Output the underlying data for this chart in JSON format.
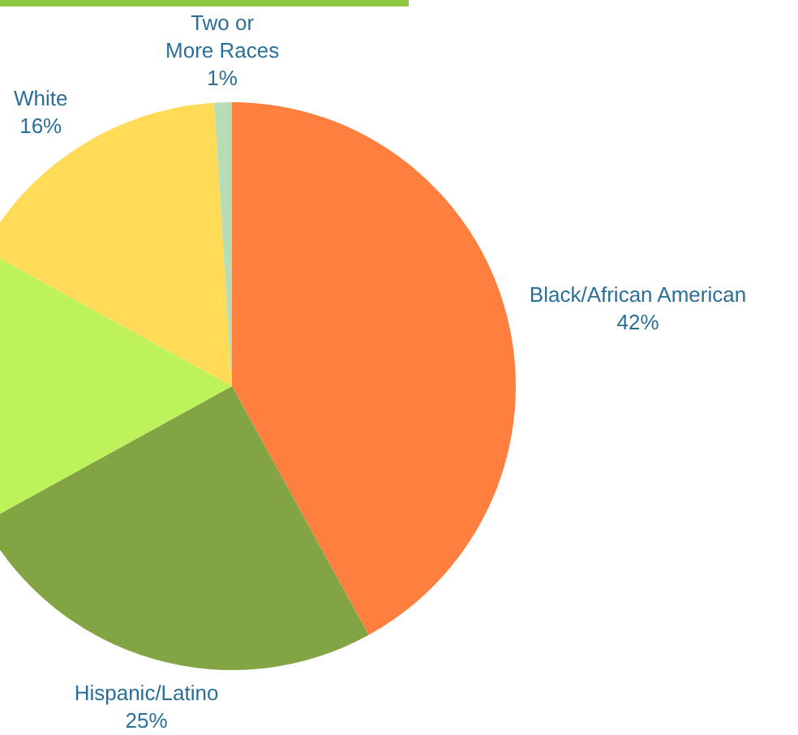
{
  "chart_data": {
    "type": "pie",
    "categories": [
      "Black/African American",
      "Hispanic/Latino",
      null,
      "White",
      "Two or More Races"
    ],
    "values": [
      42,
      25,
      16,
      16,
      1
    ],
    "value_labels": [
      "42%",
      "25%",
      null,
      "16%",
      "1%"
    ],
    "colors": [
      "#ff7f3f",
      "#83a443",
      "#bef25a",
      "#ffdb58",
      "#b8dcb4"
    ],
    "legend": false
  }
}
